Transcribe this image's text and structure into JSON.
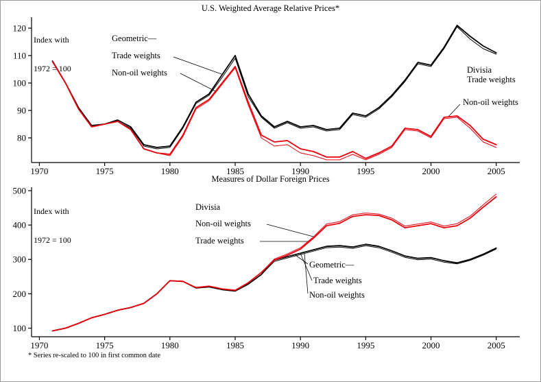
{
  "page": {
    "footnote": "*  Series re-scaled to 100 in first common date"
  },
  "colors": {
    "black": "#000000",
    "red": "#e8000d",
    "axis": "#000000"
  },
  "chart_data": [
    {
      "type": "line",
      "title": "U.S. Weighted Average Relative Prices*",
      "index_label": [
        "Index with",
        "1972 = 100"
      ],
      "xlim": [
        1969.4,
        2006.8
      ],
      "ylim": [
        71,
        124
      ],
      "xticks": [
        1970,
        1975,
        1980,
        1985,
        1990,
        1995,
        2000,
        2005
      ],
      "yticks": [
        80,
        90,
        100,
        110,
        120
      ],
      "grid": false,
      "x": [
        1971,
        1972,
        1973,
        1974,
        1975,
        1976,
        1977,
        1978,
        1979,
        1980,
        1981,
        1982,
        1983,
        1984,
        1985,
        1986,
        1987,
        1988,
        1989,
        1990,
        1991,
        1992,
        1993,
        1994,
        1995,
        1996,
        1997,
        1998,
        1999,
        2000,
        2001,
        2002,
        2003,
        2004,
        2005
      ],
      "series": [
        {
          "name": "Geometric trade weights",
          "color": "black",
          "width": 1.8,
          "values": [
            108,
            100,
            91,
            84.5,
            85,
            86.5,
            84,
            77.5,
            76.5,
            77,
            84,
            93,
            96,
            103,
            110,
            96,
            88,
            84,
            86,
            84,
            84.5,
            83,
            83.5,
            89,
            88,
            91,
            95.5,
            101,
            107.5,
            106.5,
            113,
            121,
            117,
            113.5,
            111
          ]
        },
        {
          "name": "Geometric non-oil weights",
          "color": "black",
          "width": 1,
          "values": [
            108,
            100,
            91,
            84.5,
            85,
            86,
            83.5,
            77,
            76,
            76.5,
            83.5,
            92.5,
            95.5,
            102,
            109,
            95,
            87.5,
            83.5,
            85.5,
            83.5,
            84,
            82.5,
            83,
            88.5,
            87.5,
            90.5,
            95,
            100.5,
            107,
            106,
            112.5,
            120.5,
            116,
            112.5,
            110.5
          ]
        },
        {
          "name": "Divisia trade weights",
          "color": "red",
          "width": 1.8,
          "values": [
            107.8,
            100,
            90.5,
            84,
            85,
            86,
            83,
            76,
            74.5,
            74,
            81,
            91,
            94,
            100,
            106,
            93,
            81,
            78.5,
            79,
            76,
            75,
            73,
            73,
            75,
            72.5,
            74.5,
            77,
            83.5,
            83,
            80.5,
            87.5,
            88,
            84.5,
            79.5,
            77.5
          ]
        },
        {
          "name": "Divisia non-oil weights",
          "color": "red",
          "width": 1,
          "values": [
            107.8,
            100,
            90.5,
            84,
            85,
            86,
            83,
            76,
            74.5,
            73.5,
            80.5,
            90.5,
            93.5,
            99.5,
            105.5,
            92,
            80,
            77,
            77.5,
            74.5,
            73.5,
            72,
            72,
            74,
            72,
            74,
            76.5,
            83,
            82.5,
            80,
            87,
            87.5,
            83.5,
            78.5,
            76.5
          ]
        }
      ],
      "annotations": [
        {
          "text": "Geometric—"
        },
        {
          "text": "Trade weights"
        },
        {
          "text": "Non-oil weights"
        },
        {
          "text": "Divisia"
        },
        {
          "text": "Trade weights"
        },
        {
          "text": "Non-oil weights"
        }
      ]
    },
    {
      "type": "line",
      "title": "Measures of Dollar Foreign Prices",
      "index_label": [
        "Index with",
        "1972 = 100"
      ],
      "xlim": [
        1969.4,
        2006.8
      ],
      "ylim": [
        75,
        510
      ],
      "xticks": [
        1970,
        1975,
        1980,
        1985,
        1990,
        1995,
        2000,
        2005
      ],
      "yticks": [
        100,
        200,
        300,
        400,
        500
      ],
      "grid": false,
      "x": [
        1971,
        1972,
        1973,
        1974,
        1975,
        1976,
        1977,
        1978,
        1979,
        1980,
        1981,
        1982,
        1983,
        1984,
        1985,
        1986,
        1987,
        1988,
        1989,
        1990,
        1991,
        1992,
        1993,
        1994,
        1995,
        1996,
        1997,
        1998,
        1999,
        2000,
        2001,
        2002,
        2003,
        2004,
        2005
      ],
      "series": [
        {
          "name": "Geometric trade weights",
          "color": "black",
          "width": 1.8,
          "values": [
            92,
            100,
            114,
            130,
            140,
            152,
            160,
            172,
            200,
            238,
            236,
            217,
            220,
            212,
            208,
            228,
            256,
            298,
            308,
            318,
            328,
            338,
            340,
            336,
            344,
            338,
            325,
            310,
            303,
            305,
            296,
            290,
            300,
            315,
            333
          ]
        },
        {
          "name": "Geometric non-oil weights",
          "color": "black",
          "width": 1,
          "values": [
            92,
            100,
            114,
            130,
            140,
            152,
            160,
            172,
            200,
            238,
            236,
            217,
            220,
            212,
            208,
            228,
            256,
            294,
            304,
            314,
            324,
            334,
            336,
            332,
            340,
            334,
            321,
            306,
            299,
            301,
            292,
            287,
            297,
            312,
            330
          ]
        },
        {
          "name": "Divisia trade weights",
          "color": "red",
          "width": 1.8,
          "values": [
            92,
            100,
            114,
            130,
            140,
            152,
            160,
            172,
            200,
            238,
            236,
            218,
            222,
            214,
            210,
            232,
            262,
            298,
            312,
            330,
            362,
            398,
            405,
            425,
            430,
            428,
            415,
            392,
            398,
            404,
            392,
            398,
            420,
            452,
            482
          ]
        },
        {
          "name": "Divisia non-oil weights",
          "color": "red",
          "width": 1,
          "values": [
            92,
            100,
            114,
            130,
            140,
            152,
            160,
            172,
            200,
            238,
            236,
            218,
            222,
            214,
            210,
            232,
            262,
            301,
            316,
            334,
            366,
            403,
            410,
            430,
            435,
            432,
            420,
            397,
            403,
            409,
            397,
            404,
            426,
            459,
            490
          ]
        }
      ],
      "annotations": [
        {
          "text": "Divisia"
        },
        {
          "text": "Non-oil weights"
        },
        {
          "text": "Trade weights"
        },
        {
          "text": "Geometric—"
        },
        {
          "text": "Trade weights"
        },
        {
          "text": "Non-oil weights"
        }
      ]
    }
  ]
}
